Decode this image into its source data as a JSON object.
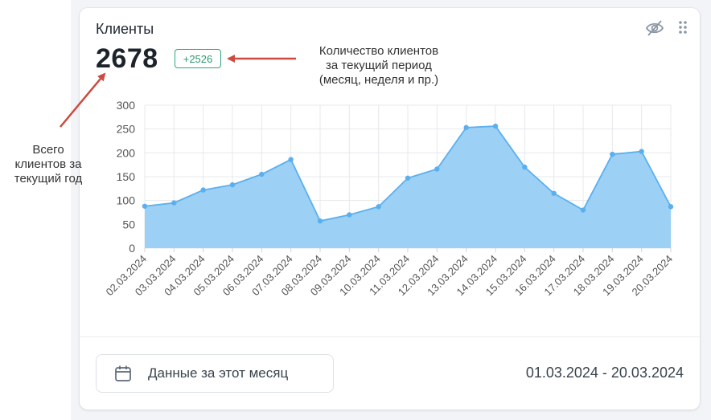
{
  "card": {
    "title": "Клиенты",
    "total": "2678",
    "delta": "+2526",
    "icons": [
      "eye-off-icon",
      "drag-handle-icon",
      "calendar-icon"
    ]
  },
  "footer": {
    "period_button_label": "Данные за этот месяц",
    "date_range": "01.03.2024 - 20.03.2024"
  },
  "annotations": {
    "period": [
      "Количество клиентов",
      "за текущий период",
      "(месяц, неделя и пр.)"
    ],
    "total": [
      "Всего",
      "клиентов за",
      "текущий год"
    ],
    "arrow_color": "#cc4a3f"
  },
  "chart_data": {
    "type": "area",
    "title": "",
    "xlabel": "",
    "ylabel": "",
    "ylim": [
      0,
      300
    ],
    "yticks": [
      0,
      50,
      100,
      150,
      200,
      250,
      300
    ],
    "grid": true,
    "fill_color": "#9dd0f5",
    "line_color": "#5ab0ee",
    "categories": [
      "02.03.2024",
      "03.03.2024",
      "04.03.2024",
      "05.03.2024",
      "06.03.2024",
      "07.03.2024",
      "08.03.2024",
      "09.03.2024",
      "10.03.2024",
      "11.03.2024",
      "12.03.2024",
      "13.03.2024",
      "14.03.2024",
      "15.03.2024",
      "16.03.2024",
      "17.03.2024",
      "18.03.2024",
      "19.03.2024",
      "20.03.2024"
    ],
    "values": [
      88,
      95,
      122,
      133,
      155,
      186,
      57,
      70,
      87,
      147,
      166,
      253,
      256,
      170,
      115,
      80,
      197,
      203,
      87
    ]
  }
}
